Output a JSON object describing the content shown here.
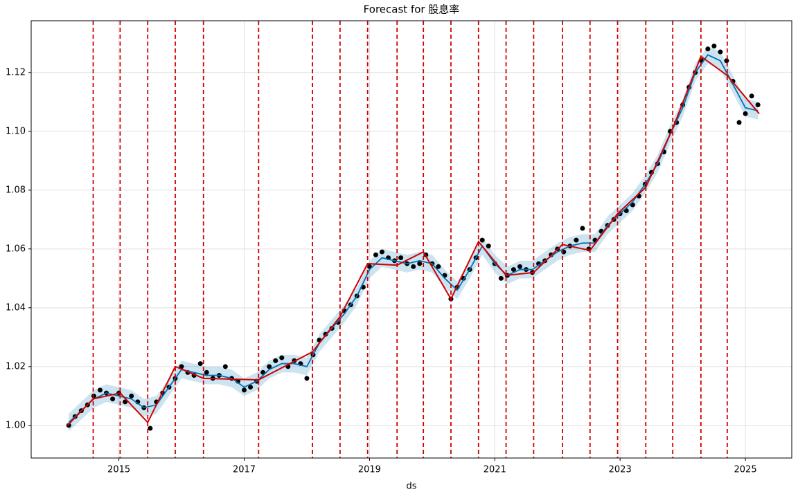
{
  "chart_data": {
    "type": "forecast",
    "title": "Forecast for 股息率",
    "xlabel": "ds",
    "xlim": [
      2013.6,
      2025.74
    ],
    "ylim": [
      0.9889,
      1.1376
    ],
    "xticks": [
      2015,
      2017,
      2019,
      2021,
      2023,
      2025
    ],
    "yticks": [
      {
        "value": 1.0,
        "label": "1.00"
      },
      1.02,
      1.04,
      1.06,
      1.08,
      {
        "value": 1.1,
        "label": "1.10"
      },
      1.12
    ],
    "grid": true,
    "observed": {
      "color": "#000000",
      "x": [
        2014.2,
        2014.3,
        2014.4,
        2014.5,
        2014.6,
        2014.7,
        2014.8,
        2014.9,
        2015.0,
        2015.1,
        2015.2,
        2015.3,
        2015.4,
        2015.5,
        2015.6,
        2015.7,
        2015.8,
        2015.9,
        2016.0,
        2016.1,
        2016.2,
        2016.3,
        2016.4,
        2016.5,
        2016.6,
        2016.7,
        2016.8,
        2016.9,
        2017.0,
        2017.1,
        2017.2,
        2017.3,
        2017.4,
        2017.5,
        2017.6,
        2017.7,
        2017.8,
        2017.9,
        2018.0,
        2018.1,
        2018.2,
        2018.3,
        2018.4,
        2018.5,
        2018.6,
        2018.7,
        2018.8,
        2018.9,
        2019.0,
        2019.1,
        2019.2,
        2019.3,
        2019.4,
        2019.5,
        2019.6,
        2019.7,
        2019.8,
        2019.9,
        2020.0,
        2020.1,
        2020.2,
        2020.3,
        2020.4,
        2020.5,
        2020.6,
        2020.7,
        2020.8,
        2020.9,
        2021.0,
        2021.1,
        2021.2,
        2021.3,
        2021.4,
        2021.5,
        2021.6,
        2021.7,
        2021.8,
        2021.9,
        2022.0,
        2022.1,
        2022.2,
        2022.3,
        2022.4,
        2022.5,
        2022.6,
        2022.7,
        2022.8,
        2022.9,
        2023.0,
        2023.1,
        2023.2,
        2023.3,
        2023.4,
        2023.5,
        2023.6,
        2023.7,
        2023.8,
        2023.9,
        2024.0,
        2024.1,
        2024.2,
        2024.3,
        2024.4,
        2024.5,
        2024.6,
        2024.7,
        2024.8,
        2024.9,
        2025.0,
        2025.1,
        2025.2
      ],
      "values": [
        1.0,
        1.003,
        1.005,
        1.007,
        1.01,
        1.012,
        1.011,
        1.009,
        1.011,
        1.008,
        1.01,
        1.008,
        1.006,
        0.999,
        1.008,
        1.011,
        1.013,
        1.016,
        1.02,
        1.018,
        1.017,
        1.021,
        1.018,
        1.016,
        1.017,
        1.02,
        1.016,
        1.015,
        1.012,
        1.013,
        1.015,
        1.018,
        1.02,
        1.022,
        1.023,
        1.02,
        1.022,
        1.021,
        1.016,
        1.024,
        1.029,
        1.031,
        1.033,
        1.035,
        1.039,
        1.041,
        1.044,
        1.047,
        1.054,
        1.058,
        1.059,
        1.057,
        1.056,
        1.057,
        1.055,
        1.054,
        1.055,
        1.058,
        1.055,
        1.054,
        1.051,
        1.043,
        1.047,
        1.05,
        1.053,
        1.057,
        1.063,
        1.061,
        1.055,
        1.05,
        1.051,
        1.053,
        1.054,
        1.053,
        1.052,
        1.055,
        1.056,
        1.058,
        1.06,
        1.059,
        1.061,
        1.063,
        1.067,
        1.06,
        1.063,
        1.066,
        1.068,
        1.07,
        1.072,
        1.073,
        1.075,
        1.078,
        1.082,
        1.086,
        1.089,
        1.093,
        1.1,
        1.103,
        1.109,
        1.115,
        1.12,
        1.124,
        1.128,
        1.129,
        1.127,
        1.124,
        1.117,
        1.103,
        1.106,
        1.112,
        1.109
      ]
    },
    "forecast": {
      "color": "#0072b2",
      "x": [
        2014.2,
        2014.4,
        2014.6,
        2014.8,
        2015.0,
        2015.2,
        2015.4,
        2015.6,
        2015.8,
        2016.0,
        2016.2,
        2016.4,
        2016.6,
        2016.8,
        2017.0,
        2017.2,
        2017.4,
        2017.6,
        2017.8,
        2018.0,
        2018.2,
        2018.4,
        2018.6,
        2018.8,
        2019.0,
        2019.2,
        2019.4,
        2019.6,
        2019.8,
        2020.0,
        2020.2,
        2020.4,
        2020.6,
        2020.8,
        2021.0,
        2021.2,
        2021.4,
        2021.6,
        2021.8,
        2022.0,
        2022.2,
        2022.4,
        2022.6,
        2022.8,
        2023.0,
        2023.2,
        2023.4,
        2023.6,
        2023.8,
        2024.0,
        2024.2,
        2024.4,
        2024.6,
        2024.8,
        2025.0,
        2025.2
      ],
      "values": [
        1.001,
        1.005,
        1.009,
        1.011,
        1.01,
        1.009,
        1.006,
        1.007,
        1.013,
        1.019,
        1.018,
        1.017,
        1.017,
        1.016,
        1.013,
        1.015,
        1.019,
        1.021,
        1.021,
        1.02,
        1.028,
        1.033,
        1.038,
        1.044,
        1.053,
        1.057,
        1.056,
        1.055,
        1.056,
        1.055,
        1.05,
        1.046,
        1.053,
        1.061,
        1.055,
        1.051,
        1.053,
        1.053,
        1.056,
        1.059,
        1.061,
        1.062,
        1.062,
        1.068,
        1.072,
        1.076,
        1.082,
        1.089,
        1.099,
        1.108,
        1.12,
        1.126,
        1.124,
        1.116,
        1.108,
        1.107
      ],
      "lower": [
        0.998,
        1.002,
        1.006,
        1.008,
        1.007,
        1.006,
        1.003,
        1.004,
        1.01,
        1.016,
        1.015,
        1.014,
        1.014,
        1.013,
        1.01,
        1.012,
        1.016,
        1.018,
        1.018,
        1.017,
        1.025,
        1.03,
        1.035,
        1.041,
        1.05,
        1.054,
        1.053,
        1.052,
        1.053,
        1.052,
        1.047,
        1.043,
        1.05,
        1.058,
        1.052,
        1.048,
        1.05,
        1.05,
        1.053,
        1.056,
        1.058,
        1.059,
        1.059,
        1.065,
        1.069,
        1.073,
        1.079,
        1.086,
        1.096,
        1.105,
        1.117,
        1.123,
        1.121,
        1.113,
        1.105,
        1.104
      ],
      "upper": [
        1.004,
        1.008,
        1.012,
        1.014,
        1.013,
        1.012,
        1.009,
        1.01,
        1.016,
        1.022,
        1.021,
        1.02,
        1.02,
        1.019,
        1.016,
        1.018,
        1.022,
        1.024,
        1.024,
        1.023,
        1.031,
        1.036,
        1.041,
        1.047,
        1.056,
        1.06,
        1.059,
        1.058,
        1.059,
        1.058,
        1.053,
        1.049,
        1.056,
        1.064,
        1.058,
        1.054,
        1.056,
        1.056,
        1.059,
        1.062,
        1.064,
        1.065,
        1.065,
        1.071,
        1.075,
        1.079,
        1.085,
        1.092,
        1.102,
        1.111,
        1.123,
        1.129,
        1.127,
        1.119,
        1.111,
        1.11
      ]
    },
    "trend": {
      "color": "#d00000",
      "x": [
        2014.18,
        2014.59,
        2015.02,
        2015.46,
        2015.9,
        2016.35,
        2017.23,
        2018.09,
        2018.53,
        2018.97,
        2019.44,
        2019.86,
        2020.3,
        2020.74,
        2021.18,
        2021.62,
        2022.08,
        2022.52,
        2022.96,
        2023.41,
        2023.84,
        2024.29,
        2024.71,
        2025.22
      ],
      "values": [
        1.0,
        1.009,
        1.011,
        1.001,
        1.02,
        1.016,
        1.0155,
        1.025,
        1.037,
        1.055,
        1.0545,
        1.059,
        1.043,
        1.0625,
        1.051,
        1.052,
        1.0615,
        1.0595,
        1.072,
        1.081,
        1.101,
        1.1255,
        1.119,
        1.106
      ]
    },
    "changepoints": {
      "color": "#d00000",
      "x": [
        2014.59,
        2015.02,
        2015.46,
        2015.9,
        2016.35,
        2017.23,
        2018.09,
        2018.53,
        2018.97,
        2019.44,
        2019.86,
        2020.3,
        2020.74,
        2021.18,
        2021.62,
        2022.08,
        2022.52,
        2022.96,
        2023.41,
        2023.84,
        2024.29,
        2024.71
      ]
    }
  }
}
